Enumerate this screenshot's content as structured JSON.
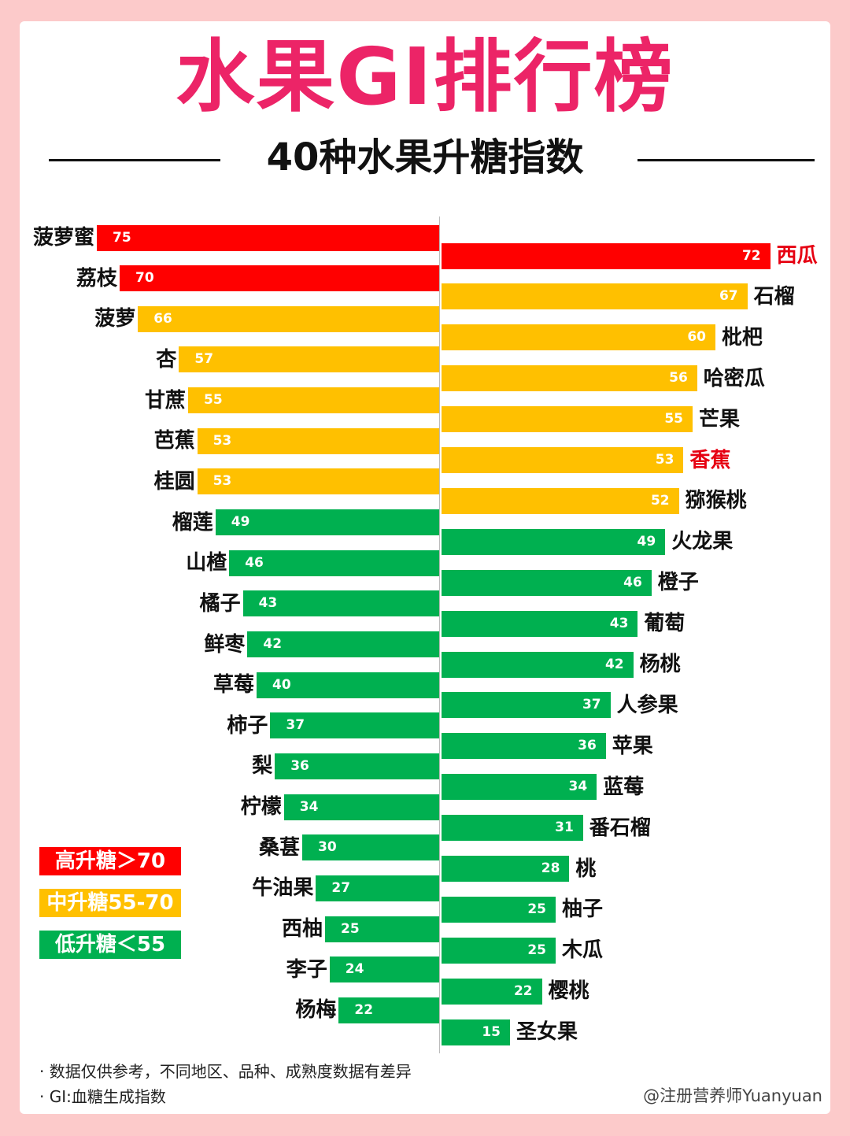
{
  "title": "水果GI排行榜",
  "subtitle": "40种水果升糖指数",
  "colors": {
    "high": "#ff0000",
    "mid": "#ffc000",
    "low": "#00b050",
    "title": "#ec2467",
    "highlight_label": "#e60012"
  },
  "legend": [
    {
      "label": "高升糖＞70",
      "level": "high"
    },
    {
      "label": "中升糖55-70",
      "level": "mid"
    },
    {
      "label": "低升糖＜55",
      "level": "low"
    }
  ],
  "chart_data": {
    "type": "bar",
    "orientation": "horizontal-diverging",
    "title": "水果GI排行榜",
    "subtitle": "40种水果升糖指数",
    "left": [
      {
        "name": "菠萝蜜",
        "value": 75,
        "level": "high"
      },
      {
        "name": "荔枝",
        "value": 70,
        "level": "high"
      },
      {
        "name": "菠萝",
        "value": 66,
        "level": "mid"
      },
      {
        "name": "杏",
        "value": 57,
        "level": "mid"
      },
      {
        "name": "甘蔗",
        "value": 55,
        "level": "mid"
      },
      {
        "name": "芭蕉",
        "value": 53,
        "level": "mid"
      },
      {
        "name": "桂圆",
        "value": 53,
        "level": "mid"
      },
      {
        "name": "榴莲",
        "value": 49,
        "level": "low"
      },
      {
        "name": "山楂",
        "value": 46,
        "level": "low"
      },
      {
        "name": "橘子",
        "value": 43,
        "level": "low"
      },
      {
        "name": "鲜枣",
        "value": 42,
        "level": "low"
      },
      {
        "name": "草莓",
        "value": 40,
        "level": "low"
      },
      {
        "name": "柿子",
        "value": 37,
        "level": "low"
      },
      {
        "name": "梨",
        "value": 36,
        "level": "low"
      },
      {
        "name": "柠檬",
        "value": 34,
        "level": "low"
      },
      {
        "name": "桑葚",
        "value": 30,
        "level": "low"
      },
      {
        "name": "牛油果",
        "value": 27,
        "level": "low"
      },
      {
        "name": "西柚",
        "value": 25,
        "level": "low"
      },
      {
        "name": "李子",
        "value": 24,
        "level": "low"
      },
      {
        "name": "杨梅",
        "value": 22,
        "level": "low"
      }
    ],
    "right": [
      {
        "name": "西瓜",
        "value": 72,
        "level": "high",
        "highlight": true
      },
      {
        "name": "石榴",
        "value": 67,
        "level": "mid"
      },
      {
        "name": "枇杷",
        "value": 60,
        "level": "mid"
      },
      {
        "name": "哈密瓜",
        "value": 56,
        "level": "mid"
      },
      {
        "name": "芒果",
        "value": 55,
        "level": "mid"
      },
      {
        "name": "香蕉",
        "value": 53,
        "level": "mid",
        "highlight": true
      },
      {
        "name": "猕猴桃",
        "value": 52,
        "level": "mid"
      },
      {
        "name": "火龙果",
        "value": 49,
        "level": "low"
      },
      {
        "name": "橙子",
        "value": 46,
        "level": "low"
      },
      {
        "name": "葡萄",
        "value": 43,
        "level": "low"
      },
      {
        "name": "杨桃",
        "value": 42,
        "level": "low"
      },
      {
        "name": "人参果",
        "value": 37,
        "level": "low"
      },
      {
        "name": "苹果",
        "value": 36,
        "level": "low"
      },
      {
        "name": "蓝莓",
        "value": 34,
        "level": "low"
      },
      {
        "name": "番石榴",
        "value": 31,
        "level": "low"
      },
      {
        "name": "桃",
        "value": 28,
        "level": "low"
      },
      {
        "name": "柚子",
        "value": 25,
        "level": "low"
      },
      {
        "name": "木瓜",
        "value": 25,
        "level": "low"
      },
      {
        "name": "樱桃",
        "value": 22,
        "level": "low"
      },
      {
        "name": "圣女果",
        "value": 15,
        "level": "low"
      }
    ],
    "grid": false
  },
  "notes": [
    "· 数据仅供参考，不同地区、品种、成熟度数据有差异",
    "· GI:血糖生成指数"
  ],
  "credit": "@注册营养师Yuanyuan"
}
